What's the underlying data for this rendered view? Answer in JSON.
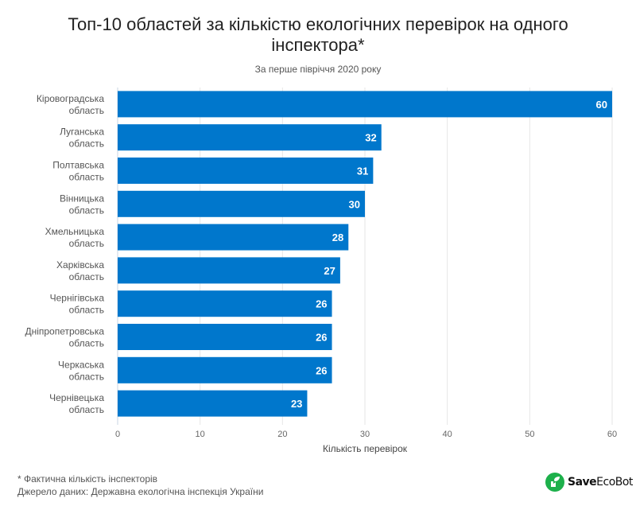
{
  "chart_data": {
    "type": "bar",
    "orientation": "horizontal",
    "title": "Топ-10 областей за кількістю екологічних перевірок на одного інспектора*",
    "title_lines": [
      "Топ-10 областей за кількістю екологічних перевірок на одного",
      "інспектора*"
    ],
    "subtitle": "За перше півріччя 2020 року",
    "categories": [
      [
        "Кіровоградська",
        "область"
      ],
      [
        "Луганська",
        "область"
      ],
      [
        "Полтавська",
        "область"
      ],
      [
        "Вінницька",
        "область"
      ],
      [
        "Хмельницька",
        "область"
      ],
      [
        "Харківська",
        "область"
      ],
      [
        "Чернігівська",
        "область"
      ],
      [
        "Дніпропетровська",
        "область"
      ],
      [
        "Черкаська",
        "область"
      ],
      [
        "Чернівецька",
        "область"
      ]
    ],
    "values": [
      60,
      32,
      31,
      30,
      28,
      27,
      26,
      26,
      26,
      23
    ],
    "xlabel": "Кількість перевірок",
    "ylabel": "",
    "xlim": [
      0,
      60
    ],
    "xticks": [
      0,
      10,
      20,
      30,
      40,
      50,
      60
    ],
    "grid": true,
    "data_labels": true,
    "bar_color": "#0077cc"
  },
  "footer": {
    "note": "* Фактична кількість інспекторів",
    "source": "Джерело даних: Державна екологічна інспекція України"
  },
  "logo": {
    "name_bold": "Save",
    "name_rest": "EcoBot",
    "color": "#1db04b"
  }
}
